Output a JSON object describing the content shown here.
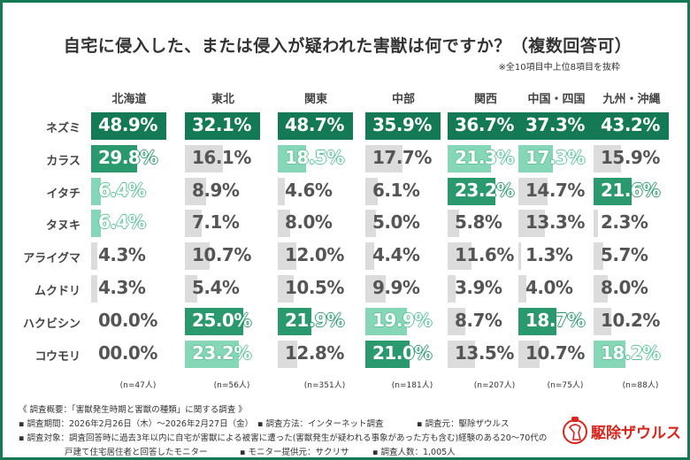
{
  "chart_data": {
    "type": "table",
    "title": "自宅に侵入した、または侵入が疑われた害獣は何ですか？（複数回答可）",
    "note": "※全10項目中上位8項目を抜粋",
    "categories": [
      "ネズミ",
      "カラス",
      "イタチ",
      "タヌキ",
      "アライグマ",
      "ムクドリ",
      "ハクビシン",
      "コウモリ"
    ],
    "series": [
      {
        "name": "北海道",
        "n": "(n=47人)",
        "values": [
          "48.9%",
          "29.8%",
          "6.4%",
          "6.4%",
          "4.3%",
          "4.3%",
          "00.0%",
          "00.0%"
        ]
      },
      {
        "name": "東北",
        "n": "(n=56人)",
        "values": [
          "32.1%",
          "16.1%",
          "8.9%",
          "7.1%",
          "10.7%",
          "5.4%",
          "25.0%",
          "23.2%"
        ]
      },
      {
        "name": "関東",
        "n": "(n=351人)",
        "values": [
          "48.7%",
          "18.5%",
          "4.6%",
          "8.0%",
          "12.0%",
          "10.5%",
          "21.9%",
          "12.8%"
        ]
      },
      {
        "name": "中部",
        "n": "(n=181人)",
        "values": [
          "35.9%",
          "17.7%",
          "6.1%",
          "5.0%",
          "4.4%",
          "9.9%",
          "19.9%",
          "21.0%"
        ]
      },
      {
        "name": "関西",
        "n": "(n=207人)",
        "values": [
          "36.7%",
          "21.3%",
          "23.2%",
          "5.8%",
          "11.6%",
          "3.9%",
          "8.7%",
          "13.5%"
        ]
      },
      {
        "name": "中国・四国",
        "n": "(n=75人)",
        "values": [
          "37.3%",
          "17.3%",
          "14.7%",
          "13.3%",
          "1.3%",
          "4.0%",
          "18.7%",
          "10.7%"
        ]
      },
      {
        "name": "九州・沖縄",
        "n": "(n=88人)",
        "values": [
          "43.2%",
          "15.9%",
          "21.6%",
          "2.3%",
          "5.7%",
          "8.0%",
          "10.2%",
          "18.2%"
        ]
      }
    ],
    "colors": {
      "rank1": "#147a56",
      "rank2": "#2a9a6e",
      "rank3": "#86d6b8",
      "other": "#dcdcdc",
      "frame": "#147a56"
    }
  },
  "footer": {
    "line1": "《 調査概要：「害獣発生時期と害獣の種類」に関する調査 》",
    "period": "▪ 調査期間：2026年2月26日（木）～2026年2月27日（金）",
    "method": "▪ 調査方法：インターネット調査",
    "source": "▪ 調査元：駆除ザウルス",
    "target": "▪ 調査対象：調査回答時に過去3年以内に自宅が害獣による被害に遭った(害獣発生が疑われる事象があった方も含む)経験のある20～70代の",
    "target2": "戸建て住宅居住者と回答したモニター",
    "provider": "▪ モニター提供元：サクリサ",
    "count": "▪ 調査人数：1,005人"
  },
  "logo": {
    "text": "駆除ザウルス"
  }
}
